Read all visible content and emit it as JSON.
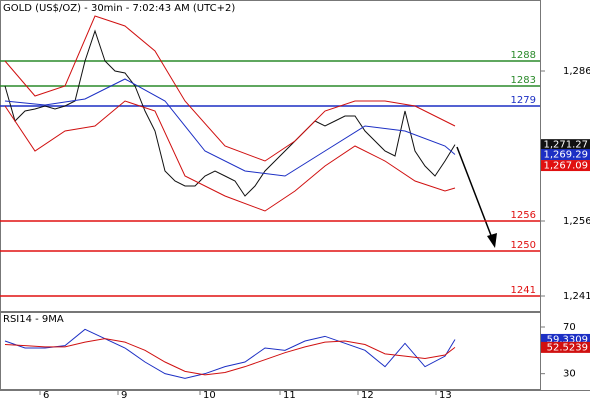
{
  "chart_data": [
    {
      "type": "line",
      "title": "GOLD (US$/OZ) - 30min - 7:02:43 AM (UTC+2)",
      "xlim": [
        -0.5,
        53.5
      ],
      "ylim": [
        1238,
        1300
      ],
      "yticks": [
        {
          "value": 1286,
          "label": "1,286"
        },
        {
          "value": 1256,
          "label": "1,256"
        },
        {
          "value": 1241,
          "label": "1,241"
        }
      ],
      "levels": [
        {
          "value": 1288,
          "color": "#2a8a2a"
        },
        {
          "value": 1283,
          "color": "#2a8a2a"
        },
        {
          "value": 1279,
          "color": "#1c2fc4"
        },
        {
          "value": 1256,
          "color": "#e01010"
        },
        {
          "value": 1250,
          "color": "#e01010"
        },
        {
          "value": 1241,
          "color": "#e01010"
        }
      ],
      "series": [
        {
          "color": "#111111",
          "x": [
            0,
            1,
            2,
            3,
            4,
            5,
            6,
            7,
            8,
            9,
            10,
            11,
            12,
            13,
            14,
            15,
            16,
            17,
            18,
            19,
            20,
            21,
            22,
            23,
            24,
            25,
            26,
            27,
            28,
            29,
            30,
            31,
            32,
            33,
            34,
            35,
            36,
            37,
            38,
            39,
            40,
            41,
            42,
            43,
            44,
            45
          ],
          "values": [
            1283,
            1276,
            1278,
            1278.4,
            1279,
            1278.4,
            1279,
            1280,
            1288,
            1294,
            1288,
            1286,
            1285.6,
            1283,
            1278,
            1274,
            1266,
            1264,
            1263,
            1263,
            1265,
            1266,
            1265,
            1264,
            1261,
            1263,
            1266,
            1268,
            1270,
            1272,
            1274,
            1276,
            1275,
            1276,
            1277,
            1277,
            1274,
            1272,
            1270,
            1269,
            1278,
            1270,
            1267,
            1265,
            1268,
            1271.27
          ]
        },
        {
          "color": "#1c2fc4",
          "x": [
            0,
            4,
            8,
            12,
            16,
            20,
            24,
            28,
            32,
            36,
            40,
            44,
            45
          ],
          "values": [
            1280,
            1279.2,
            1280.4,
            1284.4,
            1280,
            1270,
            1266,
            1265,
            1270,
            1275,
            1274,
            1271,
            1269.29
          ]
        },
        {
          "color": "#d01010",
          "x": [
            0,
            3,
            6,
            9,
            12,
            15,
            18,
            22,
            26,
            29,
            32,
            35,
            38,
            41,
            44,
            45
          ],
          "values": [
            1288,
            1281,
            1283,
            1297,
            1295,
            1290,
            1280,
            1271,
            1268,
            1272,
            1278,
            1280,
            1280,
            1279,
            1276,
            1275
          ]
        },
        {
          "color": "#d01010",
          "x": [
            0,
            3,
            6,
            9,
            12,
            15,
            18,
            22,
            26,
            29,
            32,
            35,
            38,
            41,
            44,
            45
          ],
          "values": [
            1279,
            1270,
            1274,
            1275,
            1280,
            1278,
            1265,
            1261,
            1258,
            1262,
            1267,
            1271,
            1268,
            1264,
            1262,
            1262.6
          ]
        }
      ],
      "price_boxes": [
        {
          "value": 1271.27,
          "label": "1,271.27",
          "color": "#111111"
        },
        {
          "value": 1269.29,
          "label": "1,269.29",
          "color": "#1c2fc4"
        },
        {
          "value": 1267.09,
          "label": "1,267.09",
          "color": "#e01010"
        }
      ]
    },
    {
      "type": "line",
      "title": "RSI14 - 9MA",
      "xlim": [
        -0.5,
        53.5
      ],
      "ylim": [
        16,
        82
      ],
      "yticks": [
        70,
        30
      ],
      "xticks": [
        {
          "value": 3.5,
          "label": "6"
        },
        {
          "value": 11.3,
          "label": "9"
        },
        {
          "value": 19.5,
          "label": "10"
        },
        {
          "value": 27.5,
          "label": "11"
        },
        {
          "value": 35.3,
          "label": "12"
        },
        {
          "value": 43.1,
          "label": "13"
        }
      ],
      "series": [
        {
          "color": "#1c2fc4",
          "x": [
            0,
            2,
            4,
            6,
            8,
            10,
            12,
            14,
            16,
            18,
            20,
            22,
            24,
            26,
            28,
            30,
            32,
            34,
            36,
            38,
            40,
            42,
            44,
            45
          ],
          "values": [
            58,
            52,
            52,
            54,
            68,
            60,
            52,
            40,
            30,
            26,
            30,
            36,
            40,
            52,
            50,
            58,
            62,
            56,
            50,
            36,
            56,
            36,
            45,
            59.3309
          ]
        },
        {
          "color": "#d01010",
          "x": [
            0,
            2,
            4,
            6,
            8,
            10,
            12,
            14,
            16,
            18,
            20,
            22,
            24,
            26,
            28,
            30,
            32,
            34,
            36,
            38,
            40,
            42,
            44,
            45
          ],
          "values": [
            55,
            54,
            53,
            53,
            57,
            60,
            57,
            50,
            40,
            32,
            29,
            31,
            36,
            42,
            48,
            53,
            57,
            58,
            55,
            47,
            45,
            43,
            46,
            52.5239
          ]
        }
      ]
    }
  ]
}
